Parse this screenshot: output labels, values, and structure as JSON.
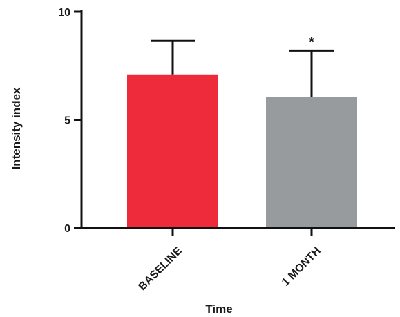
{
  "chart_data": {
    "type": "bar",
    "title": "",
    "xlabel": "Time",
    "ylabel": "Intensity index",
    "categories": [
      "BASELINE",
      "1 MONTH"
    ],
    "values": [
      7.1,
      6.05
    ],
    "error_upper": [
      8.65,
      8.2
    ],
    "colors": [
      "#ee2b3b",
      "#979b9e"
    ],
    "annotations": [
      "",
      "*"
    ],
    "yticks": [
      0,
      5,
      10
    ],
    "ytick_labels": [
      "0",
      "5",
      "10"
    ],
    "ylim": [
      0,
      10
    ],
    "grid": false,
    "legend": "none"
  }
}
